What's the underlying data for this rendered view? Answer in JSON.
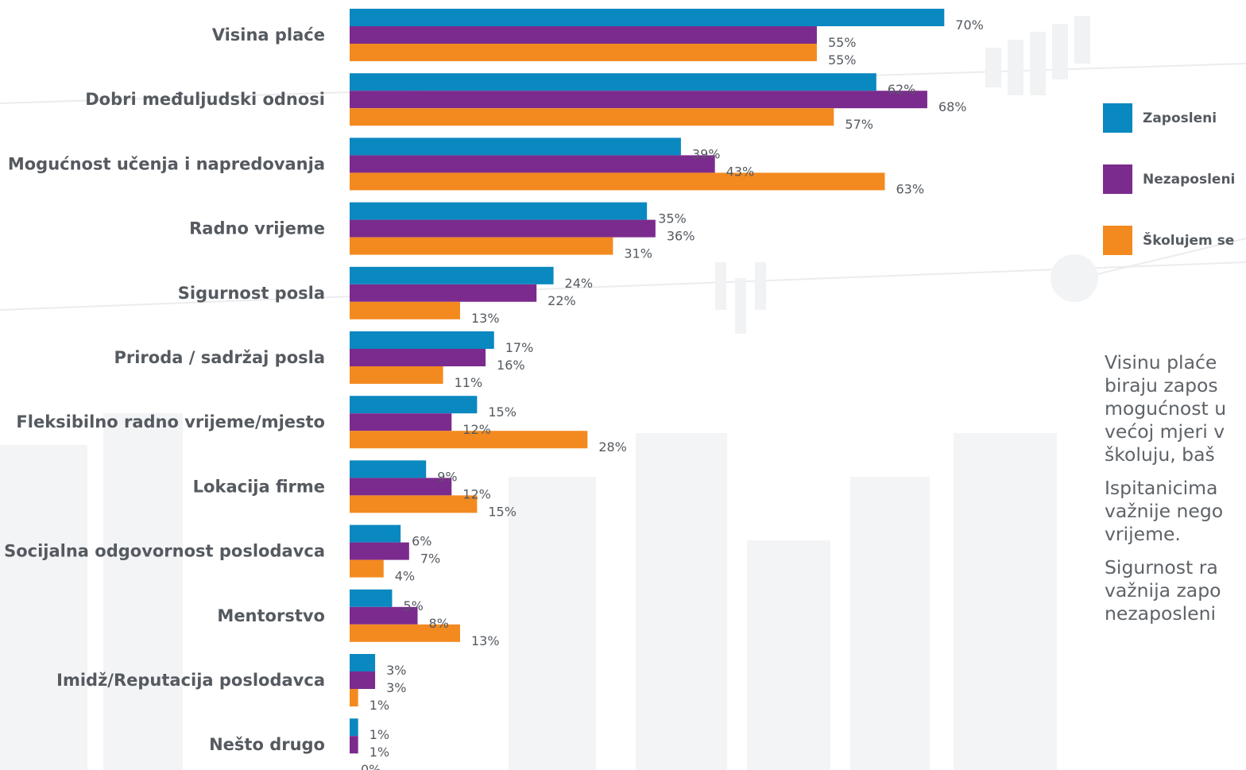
{
  "chart_data": {
    "type": "bar",
    "orientation": "horizontal",
    "value_format": "percent",
    "xlim": [
      0,
      100
    ],
    "categories": [
      "Visina plaće",
      "Dobri međuljudski odnosi",
      "Mogućnost učenja i napredovanja",
      "Radno vrijeme",
      "Sigurnost posla",
      "Priroda / sadržaj posla",
      "Fleksibilno radno vrijeme/mjesto",
      "Lokacija firme",
      "Socijalna odgovornost poslodavca",
      "Mentorstvo",
      "Imidž/Reputacija poslodavca",
      "Nešto drugo"
    ],
    "series": [
      {
        "name": "Zaposleni",
        "color": "#0a88c0",
        "values": [
          70,
          62,
          39,
          35,
          24,
          17,
          15,
          9,
          6,
          5,
          3,
          1
        ]
      },
      {
        "name": "Nezaposleni",
        "color": "#7b2b8e",
        "values": [
          55,
          68,
          43,
          36,
          22,
          16,
          12,
          12,
          7,
          8,
          3,
          1
        ]
      },
      {
        "name": "Školujem se",
        "color": "#f38a1f",
        "values": [
          55,
          57,
          63,
          31,
          13,
          11,
          28,
          15,
          4,
          13,
          1,
          0
        ]
      }
    ],
    "legend_position": "right",
    "grid": false
  },
  "notes": [
    "Visinu plaće\nbiraju zapos\nmogućnost u\nvećoj mjeri v\nškoluju, baš",
    "Ispitanicima\nvažnije nego\nvrijeme.",
    "Sigurnost ra\nvažnija zapo\nnezaposleni"
  ]
}
